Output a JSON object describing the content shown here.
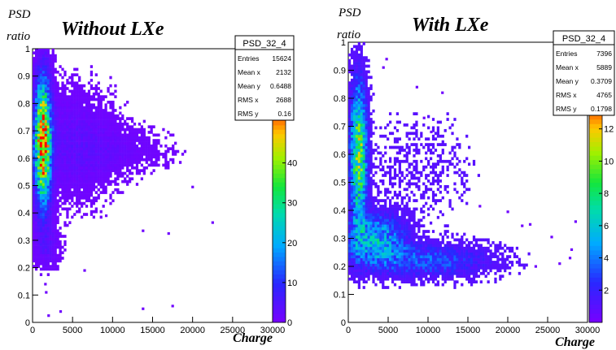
{
  "chart_data": [
    {
      "type": "heatmap",
      "title": "Without  LXe",
      "ylabel_line1": "PSD",
      "ylabel_line2": "ratio",
      "xlabel": "Charge",
      "histogram_name": "PSD_32_4",
      "stats": [
        {
          "label": "Entries",
          "value": "15624"
        },
        {
          "label": "Mean x",
          "value": "2132"
        },
        {
          "label": "Mean y",
          "value": "0.6488"
        },
        {
          "label": "RMS x",
          "value": "2688"
        },
        {
          "label": "RMS y",
          "value": "0.16"
        }
      ],
      "xlim": [
        0,
        30000
      ],
      "ylim": [
        0,
        1
      ],
      "x_ticks": [
        "0",
        "5000",
        "10000",
        "15000",
        "20000",
        "25000",
        "30000"
      ],
      "y_ticks": [
        "0",
        "0.1",
        "0.2",
        "0.3",
        "0.4",
        "0.5",
        "0.6",
        "0.7",
        "0.8",
        "0.9",
        "1"
      ],
      "z_ticks": [
        0,
        10,
        20,
        30,
        40
      ],
      "z_max": 55,
      "clusters": [
        {
          "x0": 1300,
          "sx": 650,
          "y0": 0.66,
          "sy": 0.14,
          "amp": 55
        },
        {
          "x0": 5000,
          "sx": 3500,
          "y0": 0.65,
          "sy": 0.12,
          "amp": 3
        },
        {
          "x0": 11000,
          "sx": 4000,
          "y0": 0.63,
          "sy": 0.05,
          "amp": 1.4
        },
        {
          "x0": 1800,
          "sx": 1000,
          "y0": 0.28,
          "sy": 0.05,
          "amp": 3
        }
      ],
      "outliers": [
        [
          22500,
          0.365
        ],
        [
          17000,
          0.325
        ],
        [
          13800,
          0.335
        ],
        [
          9200,
          0.39
        ],
        [
          6500,
          0.19
        ],
        [
          13800,
          0.05
        ],
        [
          17500,
          0.06
        ],
        [
          3500,
          0.04
        ],
        [
          1700,
          0.11
        ],
        [
          1600,
          0.14
        ],
        [
          20000,
          0.495
        ],
        [
          2000,
          0.025
        ]
      ]
    },
    {
      "type": "heatmap",
      "title": "With LXe",
      "ylabel_line1": "PSD",
      "ylabel_line2": "ratio",
      "xlabel": "Charge",
      "histogram_name": "PSD_32_4",
      "stats": [
        {
          "label": "Entries",
          "value": "7396"
        },
        {
          "label": "Mean x",
          "value": "5889"
        },
        {
          "label": "Mean y",
          "value": "0.3709"
        },
        {
          "label": "RMS x",
          "value": "4765"
        },
        {
          "label": "RMS y",
          "value": "0.1798"
        }
      ],
      "xlim": [
        0,
        30000
      ],
      "ylim": [
        0,
        1
      ],
      "x_ticks": [
        "0",
        "5000",
        "10000",
        "15000",
        "20000",
        "25000",
        "30000"
      ],
      "y_ticks": [
        "0",
        "0.1",
        "0.2",
        "0.3",
        "0.4",
        "0.5",
        "0.6",
        "0.7",
        "0.8",
        "0.9",
        "1"
      ],
      "z_ticks": [
        2,
        4,
        6,
        8,
        10,
        12
      ],
      "z_max": 14,
      "clusters": [
        {
          "x0": 1300,
          "sx": 700,
          "y0": 0.6,
          "sy": 0.17,
          "amp": 9
        },
        {
          "x0": 3500,
          "sx": 2500,
          "y0": 0.3,
          "sy": 0.06,
          "amp": 5
        },
        {
          "x0": 10000,
          "sx": 5500,
          "y0": 0.22,
          "sy": 0.04,
          "amp": 3.2
        },
        {
          "x0": 8000,
          "sx": 6000,
          "y0": 0.55,
          "sy": 0.15,
          "amp": 0.45
        }
      ],
      "outliers": [
        [
          28500,
          0.36
        ],
        [
          28000,
          0.26
        ],
        [
          27800,
          0.23
        ],
        [
          26500,
          0.21
        ],
        [
          25500,
          0.305
        ],
        [
          23500,
          0.2
        ],
        [
          22800,
          0.35
        ],
        [
          21800,
          0.345
        ],
        [
          20000,
          0.395
        ],
        [
          16500,
          0.415
        ],
        [
          11800,
          0.82
        ],
        [
          9500,
          0.73
        ],
        [
          10400,
          0.68
        ],
        [
          4800,
          0.94
        ],
        [
          4400,
          0.91
        ],
        [
          8600,
          0.84
        ]
      ]
    }
  ]
}
